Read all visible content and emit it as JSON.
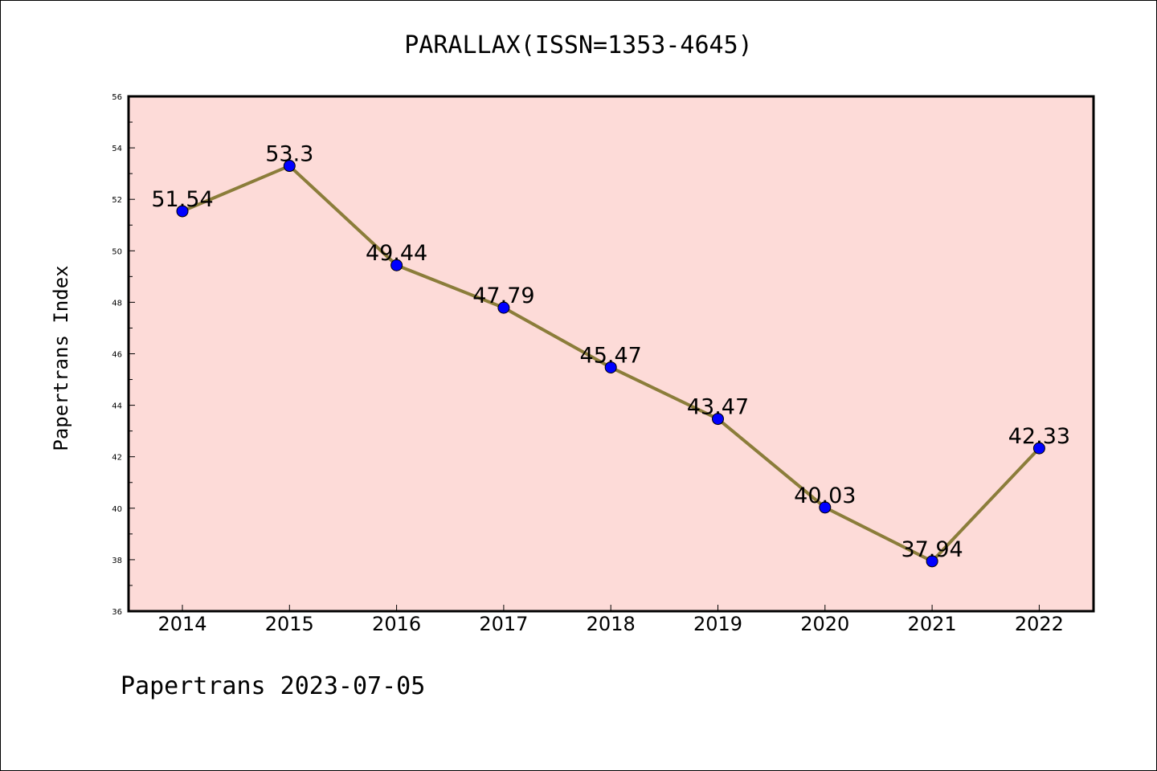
{
  "chart_data": {
    "type": "line",
    "title": "PARALLAX(ISSN=1353-4645)",
    "xlabel": "",
    "ylabel": "Papertrans Index",
    "categories": [
      "2014",
      "2015",
      "2016",
      "2017",
      "2018",
      "2019",
      "2020",
      "2021",
      "2022"
    ],
    "series": [
      {
        "values": [
          51.54,
          53.3,
          49.44,
          47.79,
          45.47,
          43.47,
          40.03,
          37.94,
          42.33
        ],
        "labels": [
          "51.54",
          "53.3",
          "49.44",
          "47.79",
          "45.47",
          "43.47",
          "40.03",
          "37.94",
          "42.33"
        ]
      }
    ],
    "ylim": [
      36,
      56
    ],
    "yticks": [
      "36",
      "38",
      "40",
      "42",
      "44",
      "46",
      "48",
      "50",
      "52",
      "54",
      "56"
    ],
    "grid": false,
    "legend": "none",
    "footer": "Papertrans 2023-07-05",
    "colors": {
      "plot_background": "#fddbd8",
      "line": "#8b7d3a",
      "marker": "#0000ff",
      "axis": "#000000"
    }
  }
}
